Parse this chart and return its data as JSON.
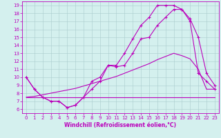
{
  "xlabel": "Windchill (Refroidissement éolien,°C)",
  "xlim": [
    -0.5,
    23.5
  ],
  "ylim": [
    5.5,
    19.5
  ],
  "xticks": [
    0,
    1,
    2,
    3,
    4,
    5,
    6,
    7,
    8,
    9,
    10,
    11,
    12,
    13,
    14,
    15,
    16,
    17,
    18,
    19,
    20,
    21,
    22,
    23
  ],
  "yticks": [
    6,
    7,
    8,
    9,
    10,
    11,
    12,
    13,
    14,
    15,
    16,
    17,
    18,
    19
  ],
  "bg_color": "#d4f0ee",
  "line_color": "#bb00bb",
  "grid_color": "#aacccc",
  "line1_x": [
    0,
    1,
    2,
    3,
    4,
    5,
    6,
    7,
    8,
    9,
    10,
    11,
    12,
    13,
    14,
    15,
    16,
    17,
    18,
    19,
    20,
    21,
    22,
    23
  ],
  "line1_y": [
    10.0,
    8.5,
    7.5,
    7.0,
    7.0,
    6.2,
    6.5,
    7.5,
    9.5,
    10.0,
    11.5,
    11.5,
    13.0,
    14.8,
    16.5,
    17.5,
    19.0,
    19.0,
    19.0,
    18.5,
    17.3,
    15.0,
    10.5,
    9.0
  ],
  "line2_x": [
    0,
    1,
    2,
    3,
    4,
    5,
    6,
    7,
    8,
    9,
    10,
    11,
    12,
    13,
    14,
    15,
    16,
    17,
    18,
    19,
    20,
    21,
    22,
    23
  ],
  "line2_y": [
    10.0,
    8.5,
    7.5,
    7.0,
    7.0,
    6.2,
    6.5,
    7.5,
    8.5,
    9.5,
    11.5,
    11.3,
    11.5,
    13.0,
    14.8,
    15.0,
    16.5,
    17.5,
    18.5,
    18.5,
    17.0,
    10.5,
    9.5,
    8.5
  ],
  "line3_x": [
    0,
    1,
    2,
    3,
    4,
    5,
    6,
    7,
    8,
    9,
    10,
    11,
    12,
    13,
    14,
    15,
    16,
    17,
    18,
    19,
    20,
    21,
    22,
    23
  ],
  "line3_y": [
    7.5,
    7.5,
    7.5,
    7.5,
    7.5,
    7.5,
    7.5,
    7.5,
    7.5,
    7.5,
    7.5,
    7.5,
    7.5,
    7.5,
    7.5,
    7.5,
    7.5,
    7.5,
    7.5,
    7.5,
    7.5,
    7.5,
    7.5,
    7.5
  ],
  "line4_x": [
    0,
    1,
    2,
    3,
    4,
    5,
    6,
    7,
    8,
    9,
    10,
    11,
    12,
    13,
    14,
    15,
    16,
    17,
    18,
    19,
    20,
    21,
    22,
    23
  ],
  "line4_y": [
    7.5,
    7.6,
    7.8,
    8.0,
    8.2,
    8.4,
    8.6,
    8.9,
    9.2,
    9.5,
    9.8,
    10.1,
    10.5,
    10.9,
    11.3,
    11.7,
    12.2,
    12.6,
    13.0,
    12.7,
    12.3,
    11.0,
    8.5,
    8.5
  ]
}
